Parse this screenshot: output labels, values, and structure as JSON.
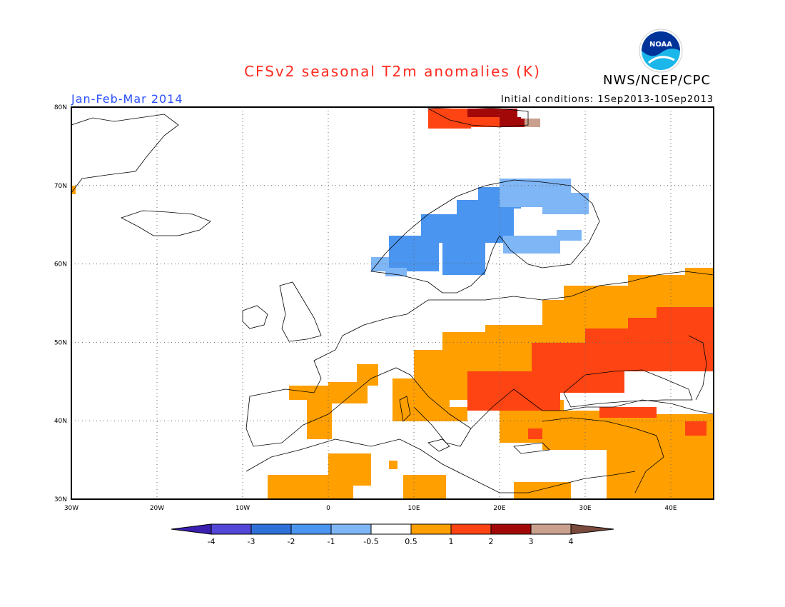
{
  "header": {
    "title": "CFSv2 seasonal T2m anomalies (K)",
    "agency": "NWS/NCEP/CPC",
    "period": "Jan-Feb-Mar 2014",
    "initial_conditions": "Initial conditions: 1Sep2013-10Sep2013",
    "logo_text": "NOAA"
  },
  "map": {
    "lat_labels": [
      "80N",
      "70N",
      "60N",
      "50N",
      "40N",
      "30N"
    ],
    "lon_labels": [
      "30W",
      "20W",
      "10W",
      "0",
      "10E",
      "20E",
      "30E",
      "40E"
    ],
    "lat_range": [
      30,
      80
    ],
    "lon_range": [
      -30,
      45
    ],
    "grid": "dotted"
  },
  "colorbar": {
    "bins": [
      {
        "color": "#3a1fb0"
      },
      {
        "color": "#5446d6"
      },
      {
        "color": "#2f6fd8"
      },
      {
        "color": "#4a95ef"
      },
      {
        "color": "#7fb6f6"
      },
      {
        "color": "#ffffff"
      },
      {
        "color": "#ff9f00"
      },
      {
        "color": "#ff4413"
      },
      {
        "color": "#a30808"
      },
      {
        "color": "#c9a08d"
      },
      {
        "color": "#7a4a3c"
      }
    ],
    "tick_labels": [
      "-4",
      "-3",
      "-2",
      "-1",
      "-0.5",
      "0.5",
      "1",
      "2",
      "3",
      "4"
    ]
  },
  "chart_data": {
    "type": "heatmap",
    "title": "CFSv2 seasonal T2m anomalies (K)",
    "units": "K",
    "levels": [
      -4,
      -3,
      -2,
      -1,
      -0.5,
      0.5,
      1,
      2,
      3,
      4
    ],
    "regions": [
      {
        "area": "Svalbard",
        "anomaly_range": "1 to 4"
      },
      {
        "area": "Norway / Sweden",
        "anomaly_range": "-2 to -0.5"
      },
      {
        "area": "Finland",
        "anomaly_range": "-1 to -0.5"
      },
      {
        "area": "Eastern Europe / Ukraine / western Russia",
        "anomaly_range": "1 to 2"
      },
      {
        "area": "Central / southeastern Europe",
        "anomaly_range": "0.5 to 2"
      },
      {
        "area": "Iberia / North Africa",
        "anomaly_range": "0.5 to 1"
      },
      {
        "area": "Turkey / Middle East",
        "anomaly_range": "0.5 to 2"
      }
    ]
  }
}
